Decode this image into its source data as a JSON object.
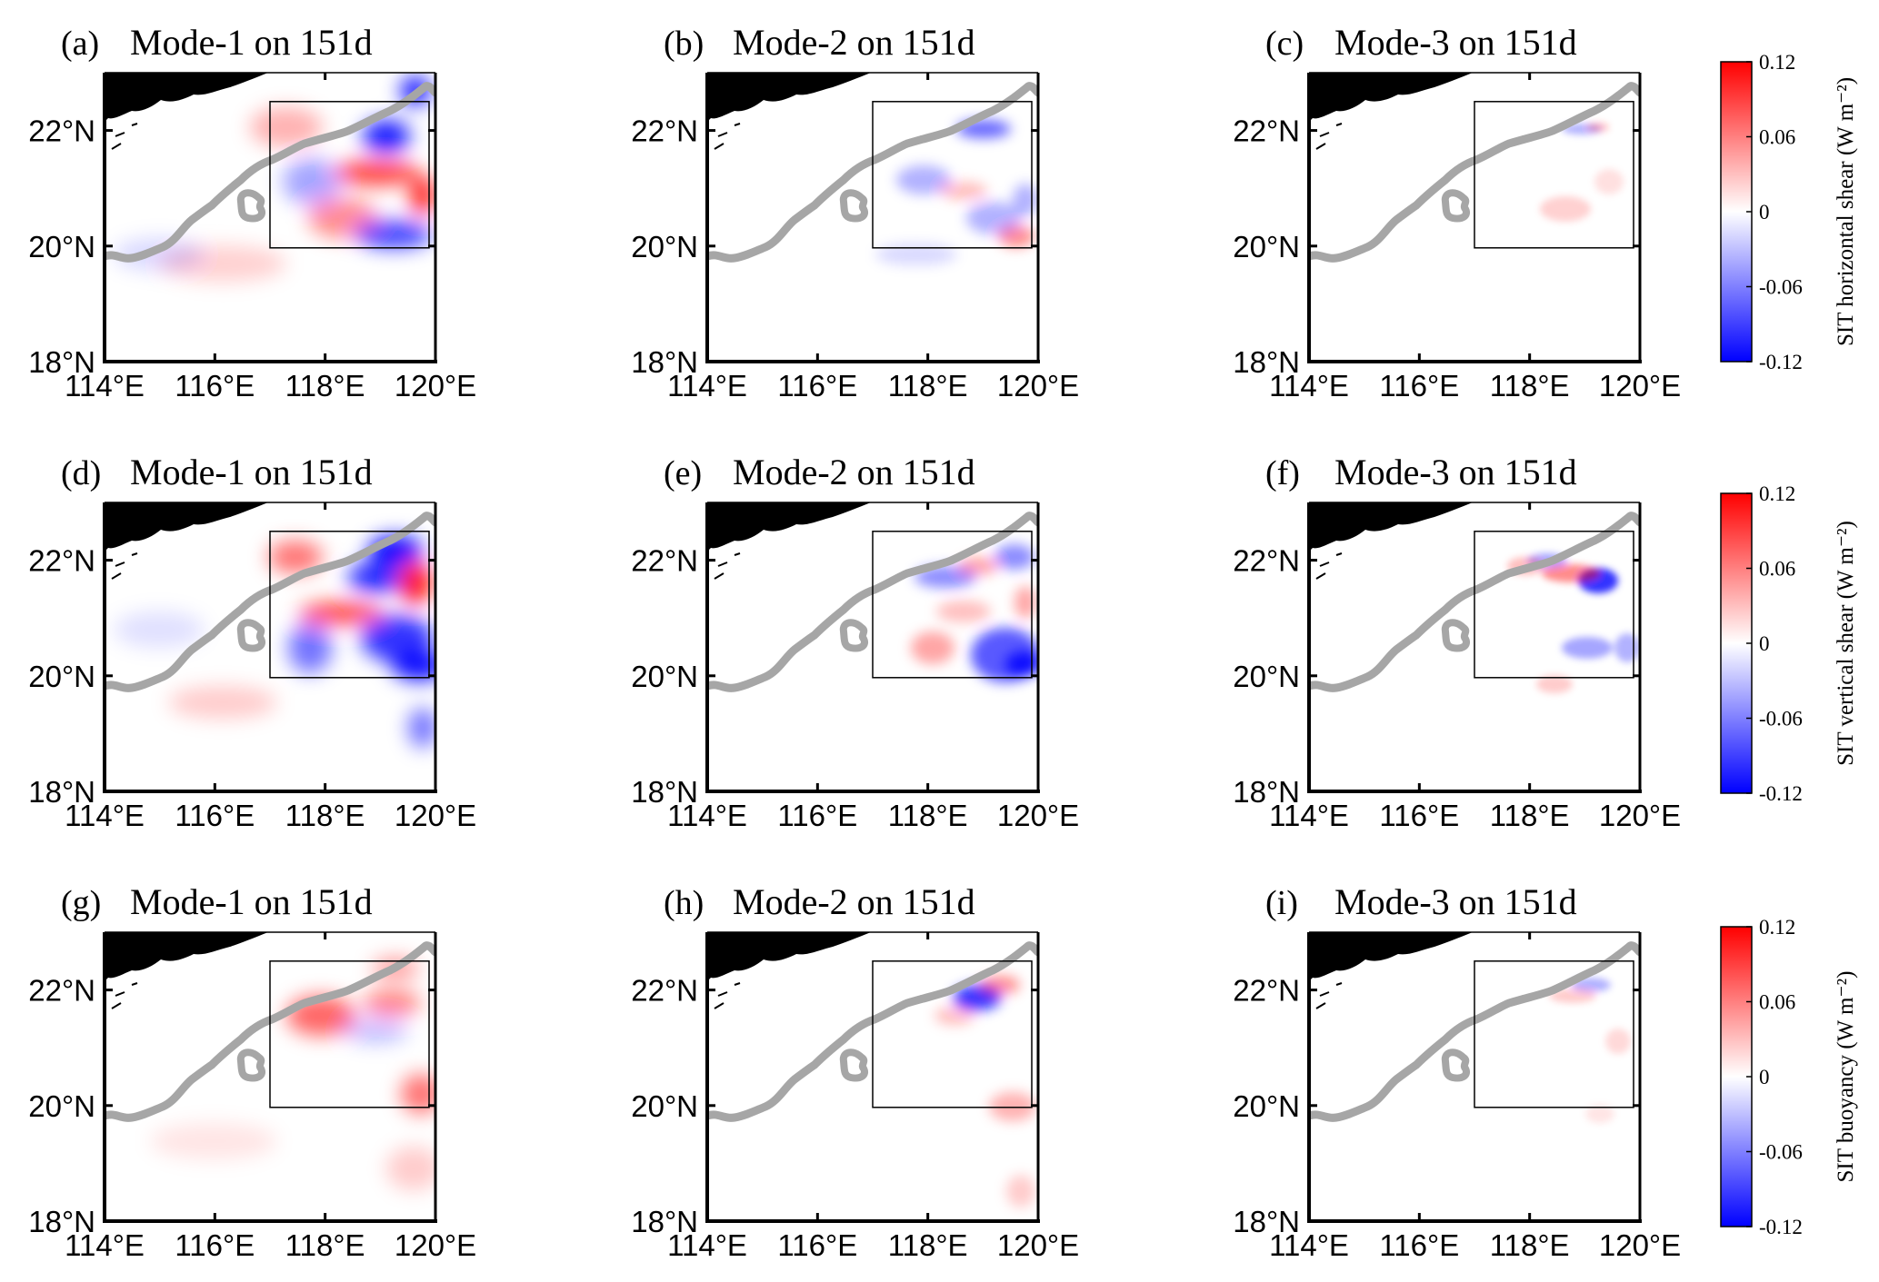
{
  "colors": {
    "positive": "#ff0000",
    "negative": "#0000ff",
    "neutral": "#ffffff",
    "land": "#000000",
    "isobath": "#a6a6a6",
    "frame": "#000000"
  },
  "axes": {
    "lat_ticks": [
      "18°N",
      "20°N",
      "22°N"
    ],
    "lon_ticks": [
      "114°E",
      "116°E",
      "118°E",
      "120°E"
    ]
  },
  "panels": [
    {
      "label": "(a)",
      "title": "Mode-1 on 151d",
      "term": "SIT horizontal shear",
      "mode": 1
    },
    {
      "label": "(b)",
      "title": "Mode-2 on 151d",
      "term": "SIT horizontal shear",
      "mode": 2
    },
    {
      "label": "(c)",
      "title": "Mode-3 on 151d",
      "term": "SIT horizontal shear",
      "mode": 3
    },
    {
      "label": "(d)",
      "title": "Mode-1 on 151d",
      "term": "SIT vertical shear",
      "mode": 1
    },
    {
      "label": "(e)",
      "title": "Mode-2 on 151d",
      "term": "SIT vertical shear",
      "mode": 2
    },
    {
      "label": "(f)",
      "title": "Mode-3 on 151d",
      "term": "SIT vertical shear",
      "mode": 3
    },
    {
      "label": "(g)",
      "title": "Mode-1 on 151d",
      "term": "SIT buoyancy",
      "mode": 1
    },
    {
      "label": "(h)",
      "title": "Mode-2 on 151d",
      "term": "SIT buoyancy",
      "mode": 2
    },
    {
      "label": "(i)",
      "title": "Mode-3 on 151d",
      "term": "SIT buoyancy",
      "mode": 3
    }
  ],
  "colorbars": [
    {
      "label": "SIT horizontal shear (W m⁻²)",
      "ticks": [
        "0.12",
        "0.06",
        "0",
        "-0.06",
        "-0.12"
      ]
    },
    {
      "label": "SIT vertical shear (W m⁻²)",
      "ticks": [
        "0.12",
        "0.06",
        "0",
        "-0.06",
        "-0.12"
      ]
    },
    {
      "label": "SIT buoyancy (W m⁻²)",
      "ticks": [
        "0.12",
        "0.06",
        "0",
        "-0.06",
        "-0.12"
      ]
    }
  ],
  "chart_data": {
    "type": "heatmap",
    "domain": {
      "lon": [
        114,
        120
      ],
      "lat": [
        18,
        23
      ]
    },
    "box_region": {
      "lon": [
        117,
        120
      ],
      "lat": [
        20,
        22.5
      ]
    },
    "color_range": [
      -0.12,
      0.12
    ],
    "units": "W m⁻²",
    "grid": false
  }
}
